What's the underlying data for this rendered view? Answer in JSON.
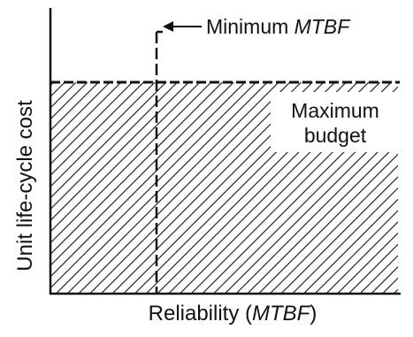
{
  "diagram": {
    "y_axis_label": "Unit life-cycle cost",
    "x_axis_label_prefix": "Reliability (",
    "x_axis_label_italic": "MTBF",
    "x_axis_label_suffix": ")",
    "marker_label_prefix": "Minimum ",
    "marker_label_italic": "MTBF",
    "region_label_line1": "Maximum",
    "region_label_line2": "budget",
    "region_fill": "diagonal-hatch",
    "ink_color": "#111111"
  }
}
